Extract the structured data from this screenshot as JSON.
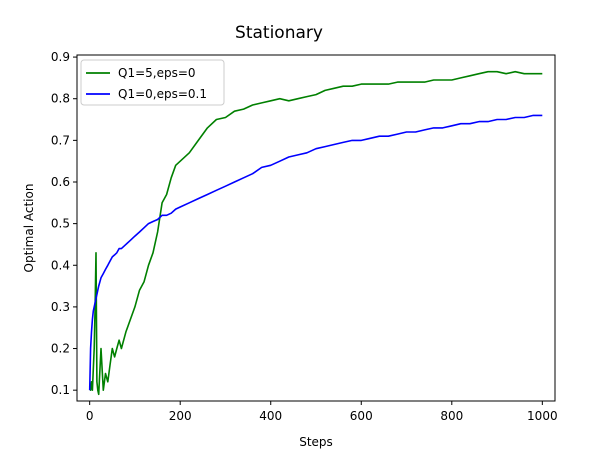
{
  "chart_data": {
    "type": "line",
    "title": "Stationary",
    "xlabel": "Steps",
    "ylabel": "Optimal Action",
    "xlim": [
      -28,
      1028
    ],
    "ylim": [
      0.074,
      0.905
    ],
    "xticks": [
      0,
      200,
      400,
      600,
      800,
      1000
    ],
    "yticks": [
      0.1,
      0.2,
      0.3,
      0.4,
      0.5,
      0.6,
      0.7,
      0.8,
      0.9
    ],
    "legend_position": "upper-left",
    "grid": false,
    "series": [
      {
        "name": "Q1=5,eps=0",
        "color": "#008000",
        "x": [
          0,
          2,
          4,
          6,
          8,
          10,
          12,
          14,
          16,
          18,
          20,
          25,
          30,
          35,
          40,
          45,
          50,
          55,
          60,
          65,
          70,
          80,
          90,
          100,
          110,
          120,
          130,
          140,
          150,
          160,
          170,
          180,
          190,
          200,
          220,
          240,
          260,
          280,
          300,
          320,
          340,
          360,
          380,
          400,
          420,
          440,
          460,
          480,
          500,
          520,
          540,
          560,
          580,
          600,
          620,
          640,
          660,
          680,
          700,
          720,
          740,
          760,
          780,
          800,
          820,
          840,
          860,
          880,
          900,
          920,
          940,
          960,
          980,
          1000
        ],
        "y": [
          0.11,
          0.1,
          0.12,
          0.1,
          0.15,
          0.2,
          0.3,
          0.43,
          0.12,
          0.1,
          0.09,
          0.2,
          0.1,
          0.14,
          0.12,
          0.16,
          0.2,
          0.18,
          0.2,
          0.22,
          0.2,
          0.24,
          0.27,
          0.3,
          0.34,
          0.36,
          0.4,
          0.43,
          0.48,
          0.55,
          0.57,
          0.61,
          0.64,
          0.65,
          0.67,
          0.7,
          0.73,
          0.75,
          0.755,
          0.77,
          0.775,
          0.785,
          0.79,
          0.795,
          0.8,
          0.795,
          0.8,
          0.805,
          0.81,
          0.82,
          0.825,
          0.83,
          0.83,
          0.835,
          0.835,
          0.835,
          0.835,
          0.84,
          0.84,
          0.84,
          0.84,
          0.845,
          0.845,
          0.845,
          0.85,
          0.855,
          0.86,
          0.865,
          0.865,
          0.86,
          0.865,
          0.86,
          0.86,
          0.86
        ]
      },
      {
        "name": "Q1=0,eps=0.1",
        "color": "#0000ff",
        "x": [
          0,
          2,
          4,
          6,
          8,
          10,
          12,
          14,
          16,
          18,
          20,
          25,
          30,
          35,
          40,
          45,
          50,
          55,
          60,
          65,
          70,
          80,
          90,
          100,
          110,
          120,
          130,
          140,
          150,
          160,
          170,
          180,
          190,
          200,
          220,
          240,
          260,
          280,
          300,
          320,
          340,
          360,
          380,
          400,
          420,
          440,
          460,
          480,
          500,
          520,
          540,
          560,
          580,
          600,
          620,
          640,
          660,
          680,
          700,
          720,
          740,
          760,
          780,
          800,
          820,
          840,
          860,
          880,
          900,
          920,
          940,
          960,
          980,
          1000
        ],
        "y": [
          0.1,
          0.2,
          0.24,
          0.27,
          0.29,
          0.3,
          0.31,
          0.32,
          0.33,
          0.34,
          0.35,
          0.37,
          0.38,
          0.39,
          0.4,
          0.41,
          0.42,
          0.425,
          0.43,
          0.44,
          0.44,
          0.45,
          0.46,
          0.47,
          0.48,
          0.49,
          0.5,
          0.505,
          0.51,
          0.52,
          0.52,
          0.525,
          0.535,
          0.54,
          0.55,
          0.56,
          0.57,
          0.58,
          0.59,
          0.6,
          0.61,
          0.62,
          0.635,
          0.64,
          0.65,
          0.66,
          0.665,
          0.67,
          0.68,
          0.685,
          0.69,
          0.695,
          0.7,
          0.7,
          0.705,
          0.71,
          0.71,
          0.715,
          0.72,
          0.72,
          0.725,
          0.73,
          0.73,
          0.735,
          0.74,
          0.74,
          0.745,
          0.745,
          0.75,
          0.75,
          0.755,
          0.755,
          0.76,
          0.76
        ]
      }
    ]
  }
}
